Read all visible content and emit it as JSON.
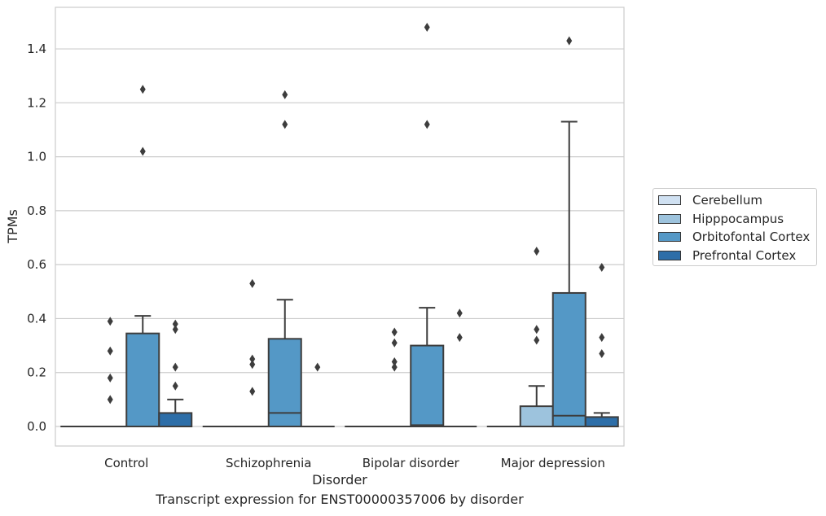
{
  "chart_data": {
    "type": "box",
    "xlabel": "Disorder",
    "ylabel": "TPMs",
    "caption": "Transcript expression for ENST00000357006 by disorder",
    "categories": [
      "Control",
      "Schizophrenia",
      "Bipolar disorder",
      "Major depression"
    ],
    "ylim": [
      -0.07,
      1.56
    ],
    "yticks": [
      "0.0",
      "0.2",
      "0.4",
      "0.6",
      "0.8",
      "1.0",
      "1.2",
      "1.4"
    ],
    "grid": true,
    "legend_position": "right",
    "series": [
      {
        "name": "Cerebellum",
        "color": "#d0e1f2",
        "boxes": [
          {
            "q1": 0,
            "median": 0,
            "q3": 0,
            "whislo": 0,
            "whishi": 0,
            "fliers": []
          },
          {
            "q1": 0,
            "median": 0,
            "q3": 0,
            "whislo": 0,
            "whishi": 0,
            "fliers": []
          },
          {
            "q1": 0,
            "median": 0,
            "q3": 0,
            "whislo": 0,
            "whishi": 0,
            "fliers": []
          },
          {
            "q1": 0,
            "median": 0,
            "q3": 0,
            "whislo": 0,
            "whishi": 0,
            "fliers": []
          }
        ]
      },
      {
        "name": "Hipppocampus",
        "color": "#9dc3dd",
        "boxes": [
          {
            "q1": 0,
            "median": 0,
            "q3": 0,
            "whislo": 0,
            "whishi": 0,
            "fliers": [
              0.39,
              0.28,
              0.18,
              0.1
            ]
          },
          {
            "q1": 0,
            "median": 0,
            "q3": 0,
            "whislo": 0,
            "whishi": 0,
            "fliers": [
              0.53,
              0.25,
              0.23,
              0.13
            ]
          },
          {
            "q1": 0,
            "median": 0,
            "q3": 0,
            "whislo": 0,
            "whishi": 0,
            "fliers": [
              0.35,
              0.31,
              0.24,
              0.22
            ]
          },
          {
            "q1": 0,
            "median": 0,
            "q3": 0.075,
            "whislo": 0,
            "whishi": 0.15,
            "fliers": [
              0.65,
              0.36,
              0.32
            ]
          }
        ]
      },
      {
        "name": "Orbitofontal Cortex",
        "color": "#5498c6",
        "boxes": [
          {
            "q1": 0,
            "median": 0,
            "q3": 0.345,
            "whislo": 0,
            "whishi": 0.41,
            "fliers": [
              1.25,
              1.02
            ]
          },
          {
            "q1": 0,
            "median": 0.05,
            "q3": 0.325,
            "whislo": 0,
            "whishi": 0.47,
            "fliers": [
              1.23,
              1.12
            ]
          },
          {
            "q1": 0,
            "median": 0.005,
            "q3": 0.3,
            "whislo": 0,
            "whishi": 0.44,
            "fliers": [
              1.48,
              1.12
            ]
          },
          {
            "q1": 0,
            "median": 0.04,
            "q3": 0.495,
            "whislo": 0,
            "whishi": 1.13,
            "fliers": [
              1.43
            ]
          }
        ]
      },
      {
        "name": "Prefrontal Cortex",
        "color": "#2d6ea8",
        "boxes": [
          {
            "q1": 0,
            "median": 0,
            "q3": 0.05,
            "whislo": 0,
            "whishi": 0.1,
            "fliers": [
              0.38,
              0.36,
              0.22,
              0.15
            ]
          },
          {
            "q1": 0,
            "median": 0,
            "q3": 0,
            "whislo": 0,
            "whishi": 0,
            "fliers": [
              0.22
            ]
          },
          {
            "q1": 0,
            "median": 0,
            "q3": 0,
            "whislo": 0,
            "whishi": 0,
            "fliers": [
              0.42,
              0.33
            ]
          },
          {
            "q1": 0,
            "median": 0,
            "q3": 0.035,
            "whislo": 0,
            "whishi": 0.05,
            "fliers": [
              0.59,
              0.33,
              0.27
            ]
          }
        ]
      }
    ]
  }
}
